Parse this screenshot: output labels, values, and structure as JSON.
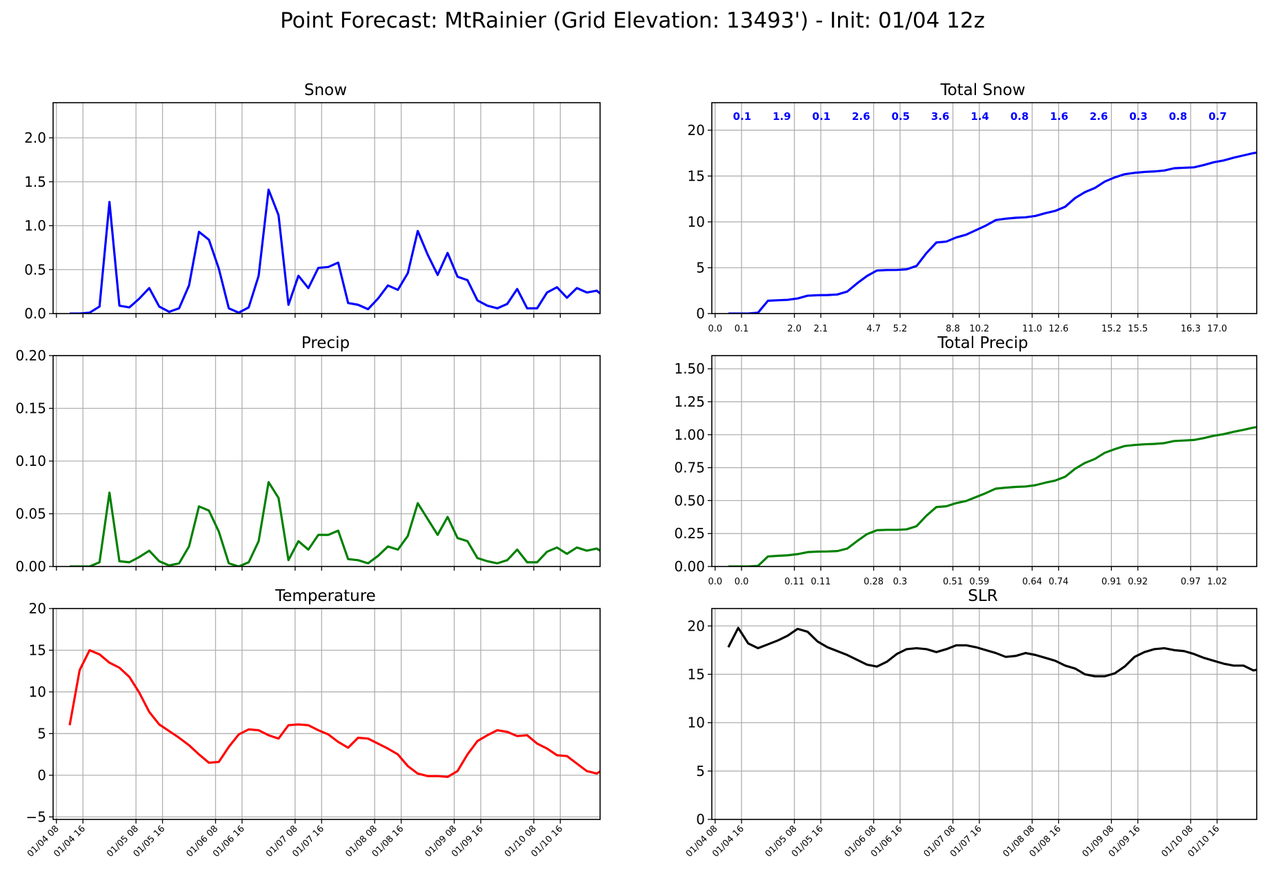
{
  "figure": {
    "title": "Point Forecast: MtRainier (Grid Elevation: 13493') - Init: 01/04 12z"
  },
  "time_axis": {
    "ticks": [
      "01/04 08",
      "01/04 16",
      "01/05 08",
      "01/05 16",
      "01/06 08",
      "01/06 16",
      "01/07 08",
      "01/07 16",
      "01/08 08",
      "01/08 16",
      "01/09 08",
      "01/09 16",
      "01/10 08",
      "01/10 16"
    ],
    "tick_hours": [
      -4,
      4,
      20,
      28,
      44,
      52,
      68,
      76,
      92,
      100,
      116,
      124,
      140,
      148
    ],
    "xlim_hours": [
      -5,
      160
    ],
    "step_hours": 3,
    "note_hours": "hours relative to 01/04 12z"
  },
  "chart_data": [
    {
      "id": "snow",
      "type": "line",
      "title": "Snow",
      "color": "#0000ff",
      "ylim": [
        0,
        2.4
      ],
      "yticks": [
        "0.0",
        "0.5",
        "1.0",
        "1.5",
        "2.0"
      ],
      "ytick_values": [
        0,
        0.5,
        1.0,
        1.5,
        2.0
      ],
      "values": [
        0.0,
        0.0,
        0.01,
        0.08,
        1.27,
        0.09,
        0.07,
        0.17,
        0.29,
        0.08,
        0.02,
        0.06,
        0.32,
        0.93,
        0.84,
        0.51,
        0.06,
        0.01,
        0.07,
        0.43,
        1.41,
        1.12,
        0.1,
        0.43,
        0.29,
        0.52,
        0.53,
        0.58,
        0.12,
        0.1,
        0.05,
        0.17,
        0.32,
        0.27,
        0.46,
        0.94,
        0.67,
        0.44,
        0.69,
        0.42,
        0.38,
        0.15,
        0.09,
        0.06,
        0.11,
        0.28,
        0.06,
        0.06,
        0.24,
        0.3,
        0.18,
        0.29,
        0.24,
        0.26,
        0.17,
        0.28
      ],
      "xticklabels_visible": false
    },
    {
      "id": "total-snow",
      "type": "line",
      "title": "Total Snow",
      "color": "#0000ff",
      "ylim": [
        0,
        23
      ],
      "yticks": [
        "0",
        "5",
        "10",
        "15",
        "20"
      ],
      "ytick_values": [
        0,
        5,
        10,
        15,
        20
      ],
      "values": [
        0.0,
        0.0,
        0.0,
        0.1,
        1.4,
        1.45,
        1.5,
        1.65,
        1.95,
        2.0,
        2.02,
        2.08,
        2.4,
        3.3,
        4.1,
        4.7,
        4.75,
        4.76,
        4.83,
        5.2,
        6.6,
        7.75,
        7.85,
        8.3,
        8.6,
        9.1,
        9.6,
        10.2,
        10.35,
        10.45,
        10.5,
        10.65,
        10.95,
        11.2,
        11.65,
        12.6,
        13.25,
        13.7,
        14.4,
        14.85,
        15.2,
        15.35,
        15.45,
        15.5,
        15.6,
        15.85,
        15.9,
        15.95,
        16.2,
        16.5,
        16.7,
        17.0,
        17.25,
        17.5,
        17.65,
        17.95
      ],
      "period_totals": [
        "0.1",
        "1.9",
        "0.1",
        "2.6",
        "0.5",
        "3.6",
        "1.4",
        "0.8",
        "1.6",
        "2.6",
        "0.3",
        "0.8",
        "0.7"
      ],
      "period_total_hours": [
        0,
        12,
        24,
        36,
        48,
        60,
        72,
        84,
        96,
        108,
        120,
        132,
        144
      ],
      "period_total_color": "#0000ff",
      "cumulative_labels": [
        "0.0",
        "0.1",
        "2.0",
        "2.1",
        "4.7",
        "5.2",
        "8.8",
        "10.2",
        "11.0",
        "12.6",
        "15.2",
        "15.5",
        "16.3",
        "17.0"
      ],
      "xticklabels_visible": false
    },
    {
      "id": "precip",
      "type": "line",
      "title": "Precip",
      "color": "#008000",
      "ylim": [
        0,
        0.2
      ],
      "yticks": [
        "0.00",
        "0.05",
        "0.10",
        "0.15",
        "0.20"
      ],
      "ytick_values": [
        0,
        0.05,
        0.1,
        0.15,
        0.2
      ],
      "values": [
        0.0,
        0.0,
        0.0,
        0.004,
        0.07,
        0.005,
        0.004,
        0.009,
        0.015,
        0.005,
        0.001,
        0.003,
        0.019,
        0.057,
        0.053,
        0.033,
        0.003,
        0.0,
        0.004,
        0.024,
        0.08,
        0.065,
        0.006,
        0.024,
        0.016,
        0.03,
        0.03,
        0.034,
        0.007,
        0.006,
        0.003,
        0.01,
        0.019,
        0.016,
        0.029,
        0.06,
        0.045,
        0.03,
        0.047,
        0.027,
        0.024,
        0.008,
        0.005,
        0.003,
        0.006,
        0.016,
        0.004,
        0.004,
        0.014,
        0.018,
        0.012,
        0.018,
        0.015,
        0.017,
        0.011,
        0.018
      ],
      "xticklabels_visible": false
    },
    {
      "id": "total-precip",
      "type": "line",
      "title": "Total Precip",
      "color": "#008000",
      "ylim": [
        0,
        1.6
      ],
      "yticks": [
        "0.00",
        "0.25",
        "0.50",
        "0.75",
        "1.00",
        "1.25",
        "1.50"
      ],
      "ytick_values": [
        0,
        0.25,
        0.5,
        0.75,
        1.0,
        1.25,
        1.5
      ],
      "values": [
        0.0,
        0.0,
        0.0,
        0.005,
        0.076,
        0.081,
        0.085,
        0.094,
        0.109,
        0.113,
        0.114,
        0.117,
        0.136,
        0.193,
        0.246,
        0.275,
        0.278,
        0.278,
        0.282,
        0.306,
        0.386,
        0.451,
        0.457,
        0.481,
        0.497,
        0.527,
        0.557,
        0.591,
        0.598,
        0.604,
        0.607,
        0.617,
        0.636,
        0.652,
        0.681,
        0.741,
        0.786,
        0.816,
        0.863,
        0.89,
        0.914,
        0.922,
        0.927,
        0.93,
        0.936,
        0.952,
        0.956,
        0.96,
        0.974,
        0.992,
        1.004,
        1.022,
        1.037,
        1.054,
        1.065,
        1.083
      ],
      "cumulative_labels": [
        "0.0",
        "0.0",
        "0.11",
        "0.11",
        "0.28",
        "0.3",
        "0.51",
        "0.59",
        "0.64",
        "0.74",
        "0.91",
        "0.92",
        "0.97",
        "1.02"
      ],
      "xticklabels_visible": false
    },
    {
      "id": "temperature",
      "type": "line",
      "title": "Temperature",
      "color": "#ff0000",
      "ylim": [
        -5.3,
        20
      ],
      "yticks": [
        "−5",
        "0",
        "5",
        "10",
        "15",
        "20"
      ],
      "ytick_values": [
        -5,
        0,
        5,
        10,
        15,
        20
      ],
      "values": [
        6.0,
        12.6,
        15.0,
        14.5,
        13.5,
        12.9,
        11.8,
        9.9,
        7.6,
        6.1,
        5.3,
        4.5,
        3.6,
        2.5,
        1.5,
        1.6,
        3.4,
        4.9,
        5.5,
        5.4,
        4.8,
        4.4,
        6.0,
        6.1,
        6.0,
        5.4,
        4.9,
        4.0,
        3.3,
        4.5,
        4.4,
        3.8,
        3.2,
        2.5,
        1.1,
        0.2,
        -0.1,
        -0.1,
        -0.2,
        0.5,
        2.5,
        4.1,
        4.8,
        5.4,
        5.2,
        4.7,
        4.8,
        3.8,
        3.2,
        2.4,
        2.3,
        1.4,
        0.5,
        0.2,
        1.0,
        0.6
      ],
      "xticklabels_visible": true
    },
    {
      "id": "slr",
      "type": "line",
      "title": "SLR",
      "color": "#000000",
      "ylim": [
        0,
        21.8
      ],
      "yticks": [
        "0",
        "5",
        "10",
        "15",
        "20"
      ],
      "ytick_values": [
        0,
        5,
        10,
        15,
        20
      ],
      "values": [
        17.8,
        19.8,
        18.2,
        17.7,
        18.1,
        18.5,
        19.0,
        19.7,
        19.4,
        18.4,
        17.8,
        17.4,
        17.0,
        16.5,
        16.0,
        15.8,
        16.3,
        17.1,
        17.6,
        17.7,
        17.6,
        17.3,
        17.6,
        18.0,
        18.0,
        17.8,
        17.5,
        17.2,
        16.8,
        16.9,
        17.2,
        17.0,
        16.7,
        16.4,
        15.9,
        15.6,
        15.0,
        14.8,
        14.8,
        15.1,
        15.8,
        16.8,
        17.3,
        17.6,
        17.7,
        17.5,
        17.4,
        17.1,
        16.7,
        16.4,
        16.1,
        15.9,
        15.9,
        15.4,
        15.6,
        15.8
      ],
      "xticklabels_visible": true
    }
  ]
}
